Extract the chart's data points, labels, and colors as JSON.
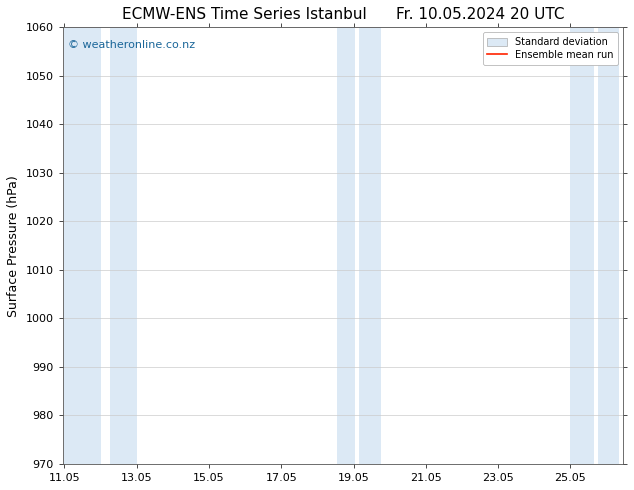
{
  "title_left": "ECMW-ENS Time Series Istanbul",
  "title_right": "Fr. 10.05.2024 20 UTC",
  "ylabel": "Surface Pressure (hPa)",
  "xlabel": "",
  "ylim": [
    970,
    1060
  ],
  "ytick_step": 10,
  "background_color": "#ffffff",
  "plot_bg_color": "#ffffff",
  "watermark": "© weatheronline.co.nz",
  "watermark_color": "#1a6699",
  "legend_labels": [
    "Standard deviation",
    "Ensemble mean run"
  ],
  "legend_patch_color": "#dce9f5",
  "legend_line_color": "#ff2200",
  "shaded_regions": [
    {
      "x_start": 11.05,
      "x_end": 12.05
    },
    {
      "x_start": 12.3,
      "x_end": 13.05
    },
    {
      "x_start": 18.6,
      "x_end": 19.1
    },
    {
      "x_start": 19.2,
      "x_end": 19.8
    },
    {
      "x_start": 25.05,
      "x_end": 25.7
    },
    {
      "x_start": 25.8,
      "x_end": 26.4
    }
  ],
  "shaded_color": "#dce9f5",
  "x_tick_positions": [
    11.05,
    13.05,
    15.05,
    17.05,
    19.05,
    21.05,
    23.05,
    25.05
  ],
  "x_tick_labels": [
    "11.05",
    "13.05",
    "15.05",
    "17.05",
    "19.05",
    "21.05",
    "23.05",
    "25.05"
  ],
  "x_lim": [
    11.0,
    26.5
  ],
  "grid_color": "#cccccc",
  "title_fontsize": 11,
  "axis_label_fontsize": 9,
  "tick_fontsize": 8,
  "watermark_fontsize": 8
}
